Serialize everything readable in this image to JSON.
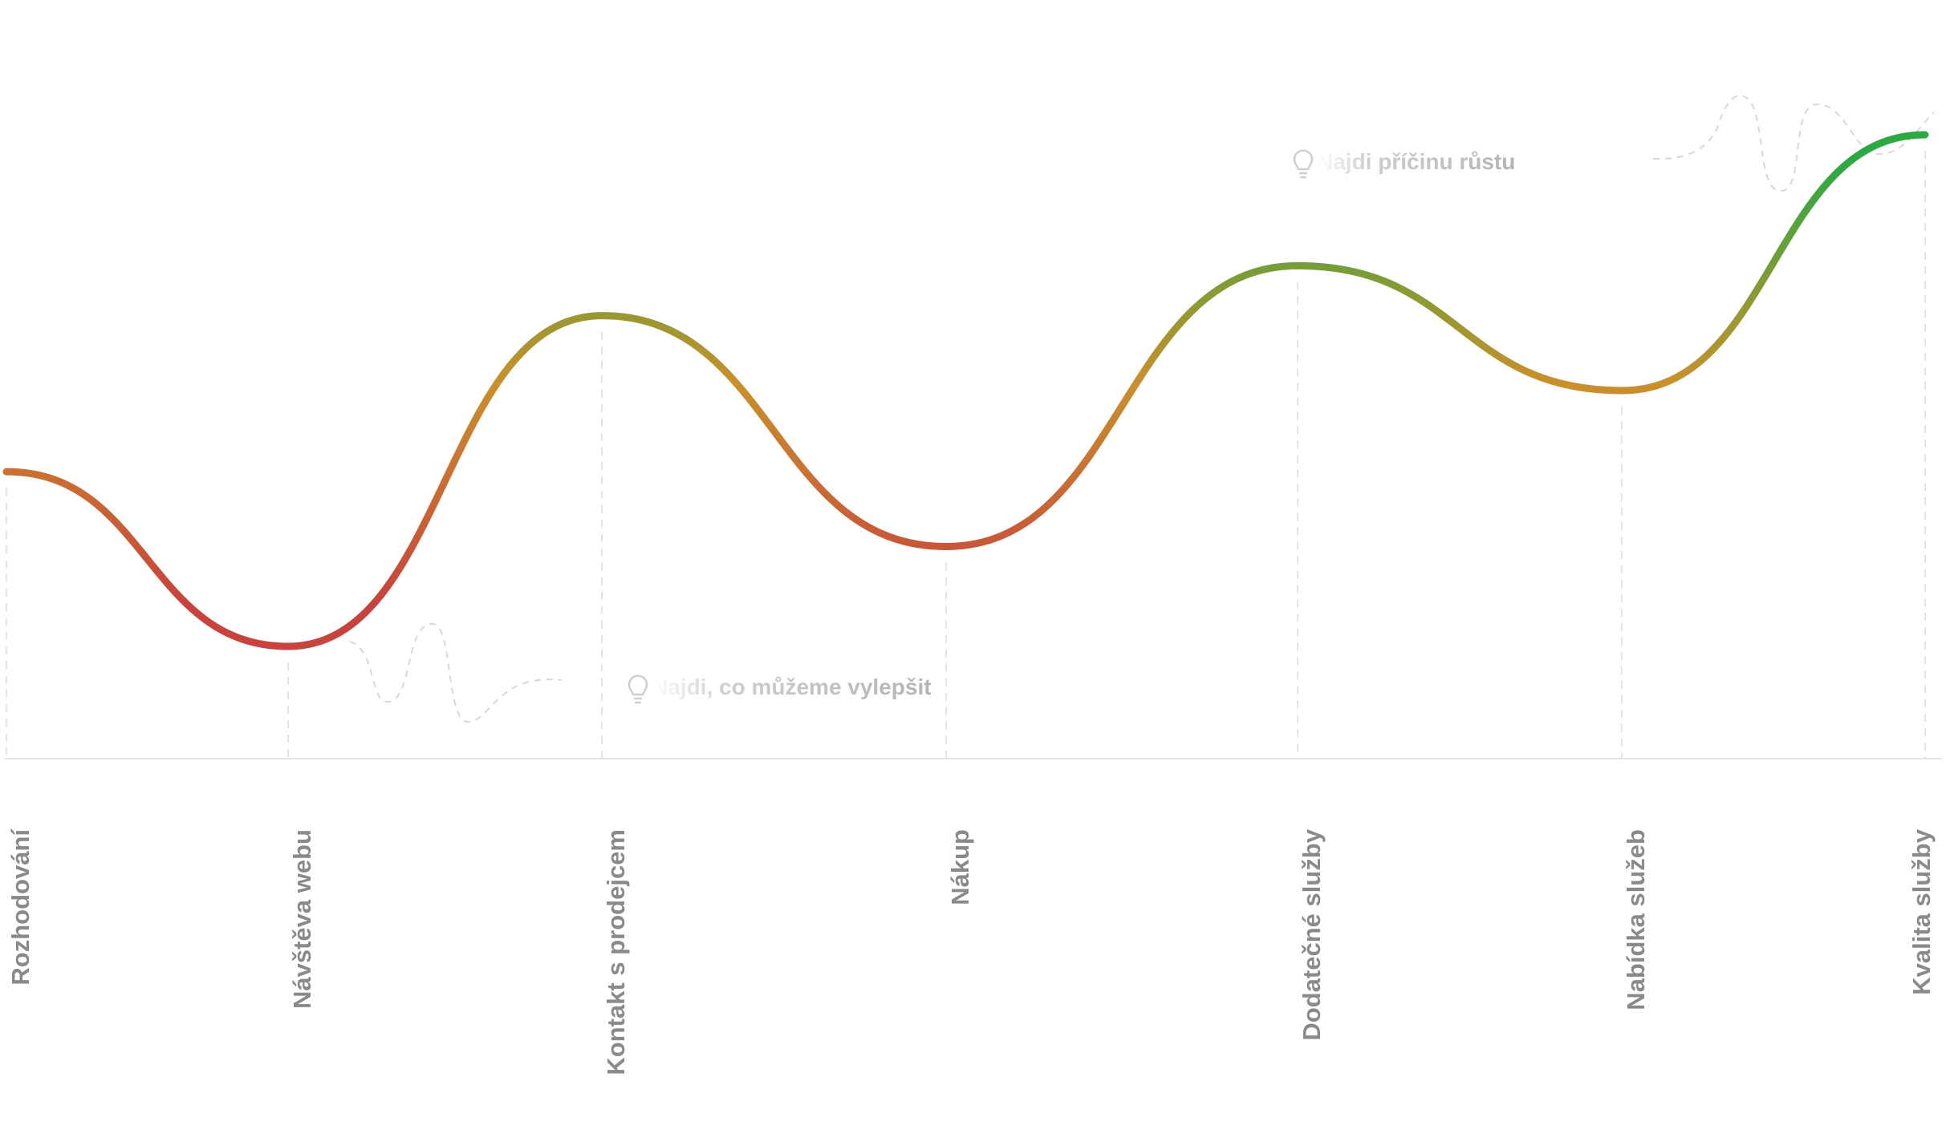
{
  "chart_data": {
    "type": "line",
    "categories": [
      "Rozhodování",
      "Návštěva webu",
      "Kontakt s prodejcem",
      "Nákup",
      "Dodatečné služby",
      "Nabídka služeb",
      "Kvalita služby"
    ],
    "values": [
      46,
      18,
      71,
      34,
      79,
      59,
      100
    ],
    "ylim": [
      0,
      100
    ],
    "colors": [
      "#c8433d",
      "#c9902c",
      "#2ea843"
    ],
    "annotations": [
      "Najdi, co můžeme vylepšit",
      "Najdi příčinu růstu"
    ]
  }
}
